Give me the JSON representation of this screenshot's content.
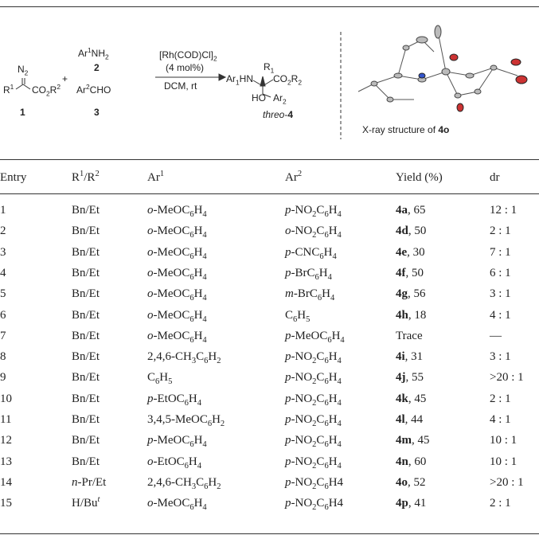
{
  "scheme": {
    "n2": [
      "N",
      {
        "sub": "2"
      }
    ],
    "r1": [
      "R",
      {
        "sup": "1"
      }
    ],
    "co2r2": [
      "CO",
      {
        "sub": "2"
      },
      "R",
      {
        "sup": "2"
      }
    ],
    "label1": {
      "b": "1"
    },
    "plus": "+",
    "ar1nh2": [
      "Ar",
      {
        "sup": "1"
      },
      "NH",
      {
        "sub": "2"
      }
    ],
    "label2": {
      "b": "2"
    },
    "ar2cho": [
      "Ar",
      {
        "sup": "2"
      },
      "CHO"
    ],
    "label3": {
      "b": "3"
    },
    "catalyst": [
      "[Rh(COD)Cl]",
      {
        "sub": "2"
      }
    ],
    "loading": "(4 mol%)",
    "conditions": "DCM,  rt",
    "product_ar1hn": [
      "Ar",
      {
        "sub": "1"
      },
      "HN"
    ],
    "product_r1": [
      "R",
      {
        "sub": "1"
      }
    ],
    "product_co2r2": [
      "CO",
      {
        "sub": "2"
      },
      "R",
      {
        "sub": "2"
      }
    ],
    "product_ho": "HO",
    "product_ar2": [
      "Ar",
      {
        "sub": "2"
      }
    ],
    "product_label": [
      {
        "i": "threo"
      },
      "-",
      {
        "b": "4"
      }
    ],
    "xray_caption": [
      "X-ray structure of ",
      {
        "b": "4o"
      }
    ]
  },
  "table": {
    "header": [
      "Entry",
      [
        "R",
        {
          "sup": "1"
        },
        "/R",
        {
          "sup": "2"
        }
      ],
      [
        "Ar",
        {
          "sup": "1"
        }
      ],
      [
        "Ar",
        {
          "sup": "2"
        }
      ],
      "Yield (%)",
      "dr"
    ],
    "rows": [
      [
        "1",
        "Bn/Et",
        [
          {
            "i": "o"
          },
          "-MeOC",
          {
            "sub": "6"
          },
          "H",
          {
            "sub": "4"
          }
        ],
        [
          {
            "i": "p"
          },
          "-NO",
          {
            "sub": "2"
          },
          "C",
          {
            "sub": "6"
          },
          "H",
          {
            "sub": "4"
          }
        ],
        [
          {
            "b": "4a"
          },
          ", 65"
        ],
        "12 : 1"
      ],
      [
        "2",
        "Bn/Et",
        [
          {
            "i": "o"
          },
          "-MeOC",
          {
            "sub": "6"
          },
          "H",
          {
            "sub": "4"
          }
        ],
        [
          {
            "i": "o"
          },
          "-NO",
          {
            "sub": "2"
          },
          "C",
          {
            "sub": "6"
          },
          "H",
          {
            "sub": "4"
          }
        ],
        [
          {
            "b": "4d"
          },
          ", 50"
        ],
        "2 : 1"
      ],
      [
        "3",
        "Bn/Et",
        [
          {
            "i": "o"
          },
          "-MeOC",
          {
            "sub": "6"
          },
          "H",
          {
            "sub": "4"
          }
        ],
        [
          {
            "i": "p"
          },
          "-CNC",
          {
            "sub": "6"
          },
          "H",
          {
            "sub": "4"
          }
        ],
        [
          {
            "b": "4e"
          },
          ", 30"
        ],
        "7 : 1"
      ],
      [
        "4",
        "Bn/Et",
        [
          {
            "i": "o"
          },
          "-MeOC",
          {
            "sub": "6"
          },
          "H",
          {
            "sub": "4"
          }
        ],
        [
          {
            "i": "p"
          },
          "-BrC",
          {
            "sub": "6"
          },
          "H",
          {
            "sub": "4"
          }
        ],
        [
          {
            "b": "4f"
          },
          ", 50"
        ],
        "6 : 1"
      ],
      [
        "5",
        "Bn/Et",
        [
          {
            "i": "o"
          },
          "-MeOC",
          {
            "sub": "6"
          },
          "H",
          {
            "sub": "4"
          }
        ],
        [
          {
            "i": "m"
          },
          "-BrC",
          {
            "sub": "6"
          },
          "H",
          {
            "sub": "4"
          }
        ],
        [
          {
            "b": "4g"
          },
          ", 56"
        ],
        "3 : 1"
      ],
      [
        "6",
        "Bn/Et",
        [
          {
            "i": "o"
          },
          "-MeOC",
          {
            "sub": "6"
          },
          "H",
          {
            "sub": "4"
          }
        ],
        [
          "C",
          {
            "sub": "6"
          },
          "H",
          {
            "sub": "5"
          }
        ],
        [
          {
            "b": "4h"
          },
          ", 18"
        ],
        "4 : 1"
      ],
      [
        "7",
        "Bn/Et",
        [
          {
            "i": "o"
          },
          "-MeOC",
          {
            "sub": "6"
          },
          "H",
          {
            "sub": "4"
          }
        ],
        [
          {
            "i": "p"
          },
          "-MeOC",
          {
            "sub": "6"
          },
          "H",
          {
            "sub": "4"
          }
        ],
        "Trace",
        "—"
      ],
      [
        "8",
        "Bn/Et",
        [
          "2,4,6-CH",
          {
            "sub": "3"
          },
          "C",
          {
            "sub": "6"
          },
          "H",
          {
            "sub": "2"
          }
        ],
        [
          {
            "i": "p"
          },
          "-NO",
          {
            "sub": "2"
          },
          "C",
          {
            "sub": "6"
          },
          "H",
          {
            "sub": "4"
          }
        ],
        [
          {
            "b": "4i"
          },
          ", 31"
        ],
        "3 : 1"
      ],
      [
        "9",
        "Bn/Et",
        [
          "C",
          {
            "sub": "6"
          },
          "H",
          {
            "sub": "5"
          }
        ],
        [
          {
            "i": "p"
          },
          "-NO",
          {
            "sub": "2"
          },
          "C",
          {
            "sub": "6"
          },
          "H",
          {
            "sub": "4"
          }
        ],
        [
          {
            "b": "4j"
          },
          ", 55"
        ],
        ">20 : 1"
      ],
      [
        "10",
        "Bn/Et",
        [
          {
            "i": "p"
          },
          "-EtOC",
          {
            "sub": "6"
          },
          "H",
          {
            "sub": "4"
          }
        ],
        [
          {
            "i": "p"
          },
          "-NO",
          {
            "sub": "2"
          },
          "C",
          {
            "sub": "6"
          },
          "H",
          {
            "sub": "4"
          }
        ],
        [
          {
            "b": "4k"
          },
          ", 45"
        ],
        "2 : 1"
      ],
      [
        "11",
        "Bn/Et",
        [
          "3,4,5-MeOC",
          {
            "sub": "6"
          },
          "H",
          {
            "sub": "2"
          }
        ],
        [
          {
            "i": "p"
          },
          "-NO",
          {
            "sub": "2"
          },
          "C",
          {
            "sub": "6"
          },
          "H",
          {
            "sub": "4"
          }
        ],
        [
          {
            "b": "4l"
          },
          ", 44"
        ],
        "4 : 1"
      ],
      [
        "12",
        "Bn/Et",
        [
          {
            "i": "p"
          },
          "-MeOC",
          {
            "sub": "6"
          },
          "H",
          {
            "sub": "4"
          }
        ],
        [
          {
            "i": "p"
          },
          "-NO",
          {
            "sub": "2"
          },
          "C",
          {
            "sub": "6"
          },
          "H",
          {
            "sub": "4"
          }
        ],
        [
          {
            "b": "4m"
          },
          ", 45"
        ],
        "10 : 1"
      ],
      [
        "13",
        "Bn/Et",
        [
          {
            "i": "o"
          },
          "-EtOC",
          {
            "sub": "6"
          },
          "H",
          {
            "sub": "4"
          }
        ],
        [
          {
            "i": "p"
          },
          "-NO",
          {
            "sub": "2"
          },
          "C",
          {
            "sub": "6"
          },
          "H",
          {
            "sub": "4"
          }
        ],
        [
          {
            "b": "4n"
          },
          ", 60"
        ],
        "10 : 1"
      ],
      [
        "14",
        [
          {
            "i": "n"
          },
          "-Pr/Et"
        ],
        [
          "2,4,6-CH",
          {
            "sub": "3"
          },
          "C",
          {
            "sub": "6"
          },
          "H",
          {
            "sub": "2"
          }
        ],
        [
          {
            "i": "p"
          },
          "-NO",
          {
            "sub": "2"
          },
          "C",
          {
            "sub": "6"
          },
          "H4"
        ],
        [
          {
            "b": "4o"
          },
          ", 52"
        ],
        ">20 : 1"
      ],
      [
        "15",
        [
          "H/Bu",
          {
            "supi": "t"
          }
        ],
        [
          {
            "i": "o"
          },
          "-MeOC",
          {
            "sub": "6"
          },
          "H",
          {
            "sub": "4"
          }
        ],
        [
          {
            "i": "p"
          },
          "-NO",
          {
            "sub": "2"
          },
          "C",
          {
            "sub": "6"
          },
          "H4"
        ],
        [
          {
            "b": "4p"
          },
          ", 41"
        ],
        "2 : 1"
      ]
    ]
  }
}
